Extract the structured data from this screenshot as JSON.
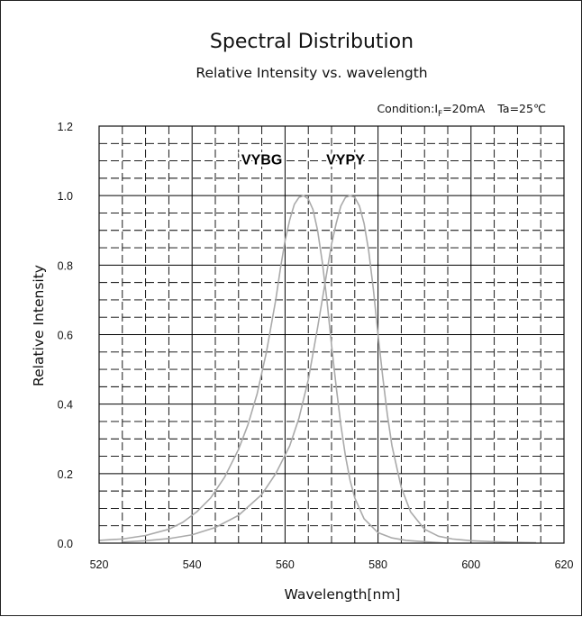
{
  "chart_data": {
    "type": "line",
    "title": "Spectral Distribution",
    "subtitle": "Relative Intensity vs. wavelength",
    "condition": {
      "prefix": "Condition:I",
      "subscript": "F",
      "suffix": "=20mA",
      "ta": "Ta=25℃"
    },
    "xlabel": "Wavelength[nm]",
    "ylabel": "Relative Intensity",
    "xlim": [
      520,
      620
    ],
    "ylim": [
      0,
      1.2
    ],
    "x_ticks": [
      520,
      540,
      560,
      580,
      600,
      620
    ],
    "y_ticks": [
      0,
      0.2,
      0.4,
      0.6,
      0.8,
      1.0,
      1.2
    ],
    "x_tick_labels": [
      "520",
      "540",
      "560",
      "580",
      "600",
      "620"
    ],
    "y_tick_labels": [
      "0.0",
      "0.2",
      "0.4",
      "0.6",
      "0.8",
      "1.0",
      "1.2"
    ],
    "grid": true,
    "line_color": "#aaaaaa",
    "series": [
      {
        "name": "VYBG",
        "x": [
          520,
          525,
          530,
          535,
          538,
          541,
          544,
          547,
          550,
          552,
          554,
          556,
          558,
          559,
          560,
          561,
          562,
          563,
          564,
          565,
          566,
          567,
          568,
          569,
          570,
          571,
          572,
          573,
          574,
          575,
          577,
          580,
          583,
          586,
          590,
          595
        ],
        "y": [
          0.008,
          0.012,
          0.022,
          0.04,
          0.06,
          0.09,
          0.13,
          0.19,
          0.27,
          0.34,
          0.43,
          0.55,
          0.7,
          0.79,
          0.87,
          0.93,
          0.975,
          0.995,
          1.0,
          0.99,
          0.96,
          0.9,
          0.81,
          0.7,
          0.57,
          0.45,
          0.34,
          0.25,
          0.18,
          0.13,
          0.07,
          0.03,
          0.015,
          0.008,
          0.004,
          0.0
        ]
      },
      {
        "name": "VYPY",
        "x": [
          525,
          530,
          535,
          540,
          545,
          550,
          555,
          558,
          561,
          563,
          565,
          567,
          569,
          570,
          571,
          572,
          573,
          574,
          575,
          576,
          577,
          578,
          579,
          580,
          581,
          582,
          583,
          585,
          587,
          590,
          593,
          596,
          600,
          605,
          610,
          614
        ],
        "y": [
          0.003,
          0.007,
          0.013,
          0.024,
          0.045,
          0.08,
          0.14,
          0.2,
          0.28,
          0.36,
          0.47,
          0.62,
          0.78,
          0.86,
          0.92,
          0.97,
          0.995,
          1.0,
          0.995,
          0.97,
          0.92,
          0.84,
          0.73,
          0.6,
          0.48,
          0.37,
          0.28,
          0.16,
          0.09,
          0.04,
          0.02,
          0.012,
          0.007,
          0.004,
          0.002,
          0.001
        ]
      }
    ]
  }
}
